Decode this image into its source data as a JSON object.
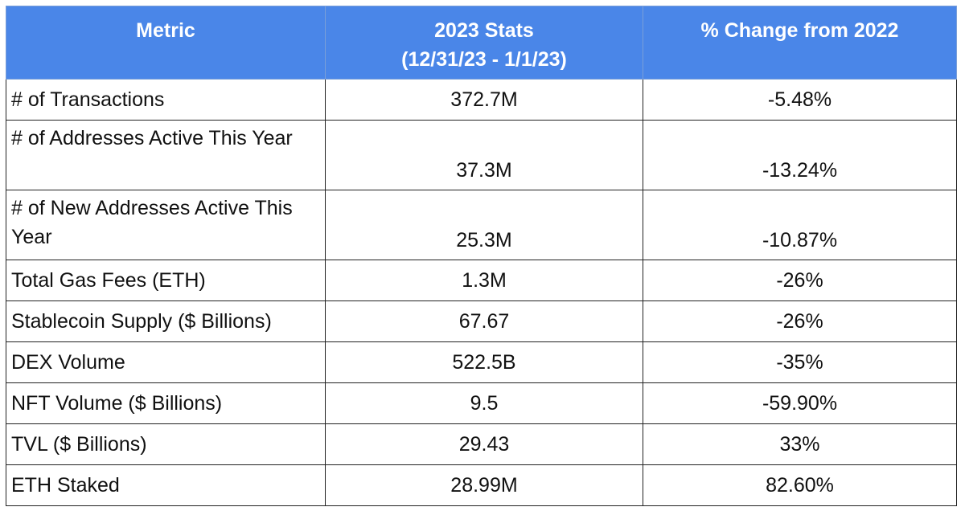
{
  "table": {
    "headers": {
      "metric": "Metric",
      "stats_line1": "2023 Stats",
      "stats_line2": "(12/31/23 - 1/1/23)",
      "change": "% Change from 2022"
    },
    "rows": [
      {
        "metric": "# of Transactions",
        "value": "372.7M",
        "change": "-5.48%"
      },
      {
        "metric": "# of Addresses Active This Year",
        "value": "37.3M",
        "change": "-13.24%"
      },
      {
        "metric": "# of New Addresses Active This Year",
        "value": "25.3M",
        "change": "-10.87%"
      },
      {
        "metric": "Total Gas Fees (ETH)",
        "value": "1.3M",
        "change": "-26%"
      },
      {
        "metric": "Stablecoin Supply ($ Billions)",
        "value": "67.67",
        "change": "-26%"
      },
      {
        "metric": "DEX Volume",
        "value": "522.5B",
        "change": "-35%"
      },
      {
        "metric": "NFT Volume ($ Billions)",
        "value": "9.5",
        "change": "-59.90%"
      },
      {
        "metric": "TVL ($ Billions)",
        "value": "29.43",
        "change": "33%"
      },
      {
        "metric": "ETH Staked",
        "value": "28.99M",
        "change": "82.60%"
      }
    ]
  },
  "colors": {
    "header_background": "#4a86e8",
    "header_text": "#ffffff",
    "border": "#222222"
  }
}
